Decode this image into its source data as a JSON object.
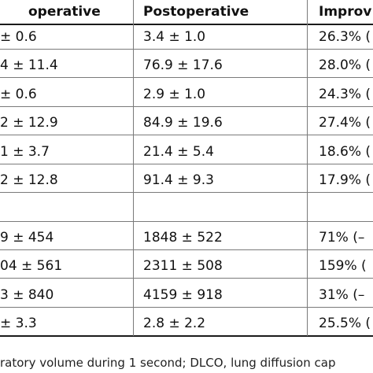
{
  "table": {
    "headers": {
      "preoperative": "operative",
      "postoperative": "Postoperative",
      "improvement": "Improv"
    },
    "rows": [
      {
        "preoperative": "± 0.6",
        "postoperative": "3.4 ± 1.0",
        "improvement": "26.3% ("
      },
      {
        "preoperative": "4 ± 11.4",
        "postoperative": "76.9 ± 17.6",
        "improvement": "28.0% ("
      },
      {
        "preoperative": "± 0.6",
        "postoperative": "2.9 ± 1.0",
        "improvement": "24.3% ("
      },
      {
        "preoperative": "2 ± 12.9",
        "postoperative": "84.9 ± 19.6",
        "improvement": "27.4% ("
      },
      {
        "preoperative": "1 ± 3.7",
        "postoperative": "21.4 ± 5.4",
        "improvement": "18.6% ("
      },
      {
        "preoperative": "2 ± 12.8",
        "postoperative": "91.4 ± 9.3",
        "improvement": "17.9% ("
      },
      {
        "preoperative": "",
        "postoperative": "",
        "improvement": ""
      },
      {
        "preoperative": "9 ± 454",
        "postoperative": "1848 ± 522",
        "improvement": "71% (–"
      },
      {
        "preoperative": "04 ± 561",
        "postoperative": "2311 ± 508",
        "improvement": "159% ("
      },
      {
        "preoperative": "3 ± 840",
        "postoperative": "4159 ± 918",
        "improvement": "31% (–"
      },
      {
        "preoperative": "± 3.3",
        "postoperative": "2.8 ± 2.2",
        "improvement": "25.5% ("
      }
    ]
  },
  "footnote": "ratory volume during 1 second; DLCO, lung diffusion cap"
}
